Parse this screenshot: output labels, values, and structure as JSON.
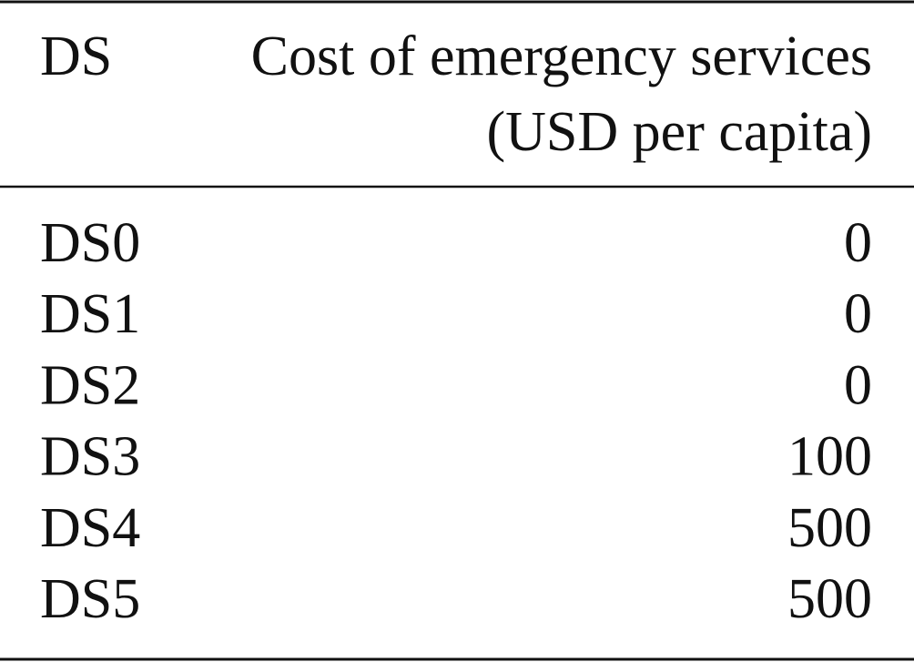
{
  "table": {
    "header": [
      [
        "DS"
      ],
      [
        "Cost of emergency services",
        "(USD per capita)"
      ]
    ],
    "rows": [
      [
        "DS0",
        0
      ],
      [
        "DS1",
        0
      ],
      [
        "DS2",
        0
      ],
      [
        "DS3",
        100
      ],
      [
        "DS4",
        500
      ],
      [
        "DS5",
        500
      ]
    ]
  }
}
